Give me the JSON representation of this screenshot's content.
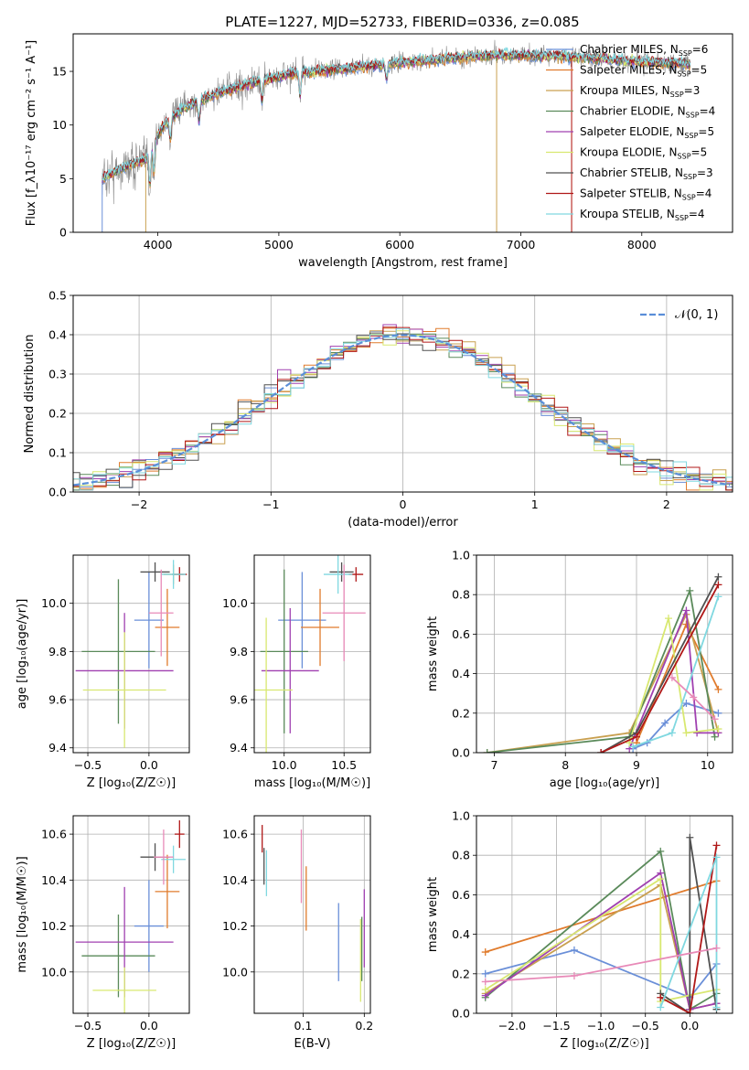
{
  "figure_title": "PLATE=1227, MJD=52733, FIBERID=0336, z=0.085",
  "colors": {
    "Chabrier MILES": "#6a8fd8",
    "Salpeter MILES": "#e07b2c",
    "Kroupa MILES": "#c9a050",
    "Chabrier ELODIE": "#5a8a5a",
    "Salpeter ELODIE": "#a040b0",
    "Kroupa ELODIE": "#d8e870",
    "Chabrier STELIB": "#505050",
    "Salpeter STELIB": "#b01818",
    "Kroupa STELIB": "#80d8e0",
    "data": "#888888",
    "pink": "#e88ab8",
    "normal": "#5a8ed8"
  },
  "chart_data": [
    {
      "id": "spectrum",
      "type": "line",
      "xlabel": "wavelength [Angstrom, rest frame]",
      "ylabel": "Flux [f_λ10⁻¹⁷ erg cm⁻² s⁻¹ A⁻¹]",
      "xlim": [
        3300,
        8750
      ],
      "ylim": [
        0,
        18.5
      ],
      "xticks": [
        "4000",
        "5000",
        "6000",
        "7000",
        "8000"
      ],
      "yticks": [
        "0",
        "5",
        "10",
        "15"
      ],
      "continuum_knots": [
        [
          3500,
          4.8
        ],
        [
          3700,
          6.0
        ],
        [
          3900,
          6.8
        ],
        [
          3950,
          8.0
        ],
        [
          4050,
          10.0
        ],
        [
          4200,
          11.5
        ],
        [
          4500,
          13.0
        ],
        [
          4800,
          14.0
        ],
        [
          5100,
          14.8
        ],
        [
          5500,
          15.2
        ],
        [
          6000,
          15.8
        ],
        [
          6500,
          16.3
        ],
        [
          6800,
          16.5
        ],
        [
          7200,
          16.5
        ],
        [
          7600,
          16.2
        ],
        [
          8000,
          15.9
        ],
        [
          8400,
          15.7
        ]
      ],
      "legend": [
        {
          "label": "Chabrier MILES, N",
          "n": "6"
        },
        {
          "label": "Salpeter MILES, N",
          "n": "5"
        },
        {
          "label": "Kroupa MILES, N",
          "n": "3"
        },
        {
          "label": "Chabrier ELODIE, N",
          "n": "4"
        },
        {
          "label": "Salpeter ELODIE, N",
          "n": "5"
        },
        {
          "label": "Kroupa ELODIE, N",
          "n": "5"
        },
        {
          "label": "Chabrier STELIB, N",
          "n": "3"
        },
        {
          "label": "Salpeter STELIB, N",
          "n": "4"
        },
        {
          "label": "Kroupa STELIB, N",
          "n": "4"
        }
      ],
      "legend_subscript": "SSP",
      "legend_placement": "right"
    },
    {
      "id": "residuals",
      "type": "histogram",
      "xlabel": "(data-model)/error",
      "ylabel": "Normed distribution",
      "xlim": [
        -2.5,
        2.5
      ],
      "ylim": [
        0,
        0.5
      ],
      "xticks": [
        "−2",
        "−1",
        "0",
        "1",
        "2"
      ],
      "yticks": [
        "0.0",
        "0.1",
        "0.2",
        "0.3",
        "0.4",
        "0.5"
      ],
      "bin_width": 0.1,
      "legend": "𝒩(0, 1)",
      "legend_placement": "top-right",
      "grid": true
    },
    {
      "id": "age_vs_Z",
      "type": "errorbar",
      "xlabel": "Z [log₁₀(Z/Z☉)]",
      "ylabel": "age  [log₁₀(age/yr)]",
      "xlim": [
        -0.62,
        0.33
      ],
      "ylim": [
        9.38,
        10.2
      ],
      "xticks": [
        "−0.5",
        "0.0"
      ],
      "yticks": [
        "9.4",
        "9.6",
        "9.8",
        "10.0"
      ],
      "points": [
        {
          "model": "Chabrier MILES",
          "x": 0.0,
          "xerr": 0.12,
          "y": 9.93,
          "yerr": 0.2
        },
        {
          "model": "Salpeter MILES",
          "x": 0.15,
          "xerr": 0.1,
          "y": 9.9,
          "yerr": 0.16
        },
        {
          "model": "Kroupa MILES",
          "x": 0.2,
          "xerr": 0.08,
          "y": 10.12,
          "yerr": 0.04
        },
        {
          "model": "Chabrier ELODIE",
          "x": -0.25,
          "xerr": 0.3,
          "y": 9.8,
          "yerr": 0.3
        },
        {
          "model": "Salpeter ELODIE",
          "x": -0.2,
          "xerr": 0.4,
          "y": 9.72,
          "yerr": 0.24
        },
        {
          "model": "Kroupa ELODIE",
          "x": -0.2,
          "xerr": 0.34,
          "y": 9.64,
          "yerr": 0.24
        },
        {
          "model": "Chabrier STELIB",
          "x": 0.05,
          "xerr": 0.12,
          "y": 10.13,
          "yerr": 0.04
        },
        {
          "model": "Salpeter STELIB",
          "x": 0.25,
          "xerr": 0.06,
          "y": 10.12,
          "yerr": 0.03
        },
        {
          "model": "Kroupa STELIB",
          "x": 0.2,
          "xerr": 0.1,
          "y": 10.12,
          "yerr": 0.06
        },
        {
          "model": "pink",
          "x": 0.1,
          "xerr": 0.1,
          "y": 9.96,
          "yerr": 0.18
        }
      ],
      "grid": true
    },
    {
      "id": "age_vs_mass",
      "type": "errorbar",
      "xlabel": "mass [log₁₀(M/M☉)]",
      "ylabel": "",
      "xlim": [
        9.75,
        10.72
      ],
      "ylim": [
        9.38,
        10.2
      ],
      "xticks": [
        "9.5",
        "10.0",
        "10.5"
      ],
      "xtick_values": [
        9.5,
        10.0,
        10.5
      ],
      "yticks": [
        "9.4",
        "9.6",
        "9.8",
        "10.0"
      ],
      "points": [
        {
          "model": "Chabrier MILES",
          "x": 10.15,
          "xerr": 0.2,
          "y": 9.93,
          "yerr": 0.2
        },
        {
          "model": "Salpeter MILES",
          "x": 10.3,
          "xerr": 0.16,
          "y": 9.9,
          "yerr": 0.16
        },
        {
          "model": "Chabrier ELODIE",
          "x": 10.0,
          "xerr": 0.2,
          "y": 9.8,
          "yerr": 0.34
        },
        {
          "model": "Salpeter ELODIE",
          "x": 10.05,
          "xerr": 0.24,
          "y": 9.72,
          "yerr": 0.26
        },
        {
          "model": "Kroupa ELODIE",
          "x": 9.85,
          "xerr": 0.22,
          "y": 9.64,
          "yerr": 0.3
        },
        {
          "model": "Chabrier STELIB",
          "x": 10.48,
          "xerr": 0.1,
          "y": 10.13,
          "yerr": 0.04
        },
        {
          "model": "Salpeter STELIB",
          "x": 10.6,
          "xerr": 0.06,
          "y": 10.12,
          "yerr": 0.03
        },
        {
          "model": "Kroupa STELIB",
          "x": 10.45,
          "xerr": 0.12,
          "y": 10.12,
          "yerr": 0.08
        },
        {
          "model": "pink",
          "x": 10.5,
          "xerr": 0.18,
          "y": 9.96,
          "yerr": 0.2
        }
      ],
      "grid": true
    },
    {
      "id": "massweight_vs_age",
      "type": "line",
      "xlabel": "age  [log₁₀(age/yr)]",
      "ylabel": "mass weight",
      "xlim": [
        6.75,
        10.35
      ],
      "ylim": [
        0,
        1
      ],
      "xticks": [
        "7",
        "8",
        "9",
        "10"
      ],
      "yticks": [
        "0.0",
        "0.2",
        "0.4",
        "0.6",
        "0.8",
        "1.0"
      ],
      "series": [
        {
          "model": "Chabrier MILES",
          "x": [
            8.95,
            9.15,
            9.4,
            9.7,
            10.15
          ],
          "y": [
            0.02,
            0.05,
            0.15,
            0.25,
            0.2
          ]
        },
        {
          "model": "Salpeter MILES",
          "x": [
            9.0,
            9.7,
            10.15
          ],
          "y": [
            0.05,
            0.65,
            0.32
          ]
        },
        {
          "model": "Kroupa MILES",
          "x": [
            6.9,
            8.9,
            9.7,
            10.15
          ],
          "y": [
            0.0,
            0.1,
            0.7,
            0.1
          ]
        },
        {
          "model": "Chabrier ELODIE",
          "x": [
            6.9,
            8.9,
            9.75,
            10.1
          ],
          "y": [
            0.0,
            0.08,
            0.82,
            0.08
          ]
        },
        {
          "model": "Salpeter ELODIE",
          "x": [
            8.9,
            9.7,
            9.85,
            10.15
          ],
          "y": [
            0.02,
            0.72,
            0.1,
            0.1
          ]
        },
        {
          "model": "Kroupa ELODIE",
          "x": [
            8.9,
            9.45,
            9.7,
            10.15
          ],
          "y": [
            0.05,
            0.68,
            0.1,
            0.12
          ]
        },
        {
          "model": "Chabrier STELIB",
          "x": [
            8.5,
            9.0,
            10.15
          ],
          "y": [
            0.0,
            0.1,
            0.89
          ]
        },
        {
          "model": "Salpeter STELIB",
          "x": [
            8.5,
            9.0,
            10.15
          ],
          "y": [
            0.0,
            0.08,
            0.85
          ]
        },
        {
          "model": "Kroupa STELIB",
          "x": [
            8.95,
            9.5,
            10.15
          ],
          "y": [
            0.03,
            0.1,
            0.79
          ]
        },
        {
          "model": "pink",
          "x": [
            9.5,
            9.8,
            10.1
          ],
          "y": [
            0.38,
            0.28,
            0.17
          ]
        }
      ],
      "grid": true
    },
    {
      "id": "mass_vs_Z",
      "type": "errorbar",
      "xlabel": "Z [log₁₀(Z/Z☉)]",
      "ylabel": "mass [log₁₀(M/M☉)]",
      "xlim": [
        -0.62,
        0.33
      ],
      "ylim": [
        9.82,
        10.68
      ],
      "xticks": [
        "−0.5",
        "0.0"
      ],
      "yticks": [
        "10.0",
        "10.2",
        "10.4",
        "10.6"
      ],
      "points": [
        {
          "model": "Chabrier MILES",
          "x": 0.0,
          "xerr": 0.12,
          "y": 10.2,
          "yerr": 0.2
        },
        {
          "model": "Salpeter MILES",
          "x": 0.15,
          "xerr": 0.1,
          "y": 10.35,
          "yerr": 0.16
        },
        {
          "model": "Chabrier ELODIE",
          "x": -0.25,
          "xerr": 0.3,
          "y": 10.07,
          "yerr": 0.18
        },
        {
          "model": "Salpeter ELODIE",
          "x": -0.2,
          "xerr": 0.4,
          "y": 10.13,
          "yerr": 0.24
        },
        {
          "model": "Kroupa ELODIE",
          "x": -0.2,
          "xerr": 0.26,
          "y": 9.92,
          "yerr": 0.1
        },
        {
          "model": "Chabrier STELIB",
          "x": 0.05,
          "xerr": 0.12,
          "y": 10.5,
          "yerr": 0.06
        },
        {
          "model": "Salpeter STELIB",
          "x": 0.25,
          "xerr": 0.04,
          "y": 10.6,
          "yerr": 0.06
        },
        {
          "model": "Kroupa STELIB",
          "x": 0.2,
          "xerr": 0.1,
          "y": 10.49,
          "yerr": 0.06
        },
        {
          "model": "pink",
          "x": 0.12,
          "xerr": 0.08,
          "y": 10.5,
          "yerr": 0.12
        }
      ],
      "grid": true
    },
    {
      "id": "mass_vs_EBV",
      "type": "errorbar",
      "xlabel": "E(B-V)",
      "ylabel": "",
      "xlim": [
        0.02,
        0.21
      ],
      "ylim": [
        9.82,
        10.68
      ],
      "xticks": [
        "0.1",
        "0.2"
      ],
      "yticks": [
        "10.0",
        "10.2",
        "10.4",
        "10.6"
      ],
      "points": [
        {
          "model": "Salpeter STELIB",
          "x": 0.033,
          "y": 10.58,
          "yerr": 0.06
        },
        {
          "model": "Chabrier STELIB",
          "x": 0.036,
          "y": 10.46,
          "yerr": 0.08
        },
        {
          "model": "Kroupa STELIB",
          "x": 0.04,
          "y": 10.43,
          "yerr": 0.1
        },
        {
          "model": "pink",
          "x": 0.097,
          "y": 10.46,
          "yerr": 0.16
        },
        {
          "model": "Salpeter MILES",
          "x": 0.105,
          "y": 10.32,
          "yerr": 0.14
        },
        {
          "model": "Chabrier MILES",
          "x": 0.158,
          "y": 10.13,
          "yerr": 0.17
        },
        {
          "model": "Kroupa ELODIE",
          "x": 0.194,
          "y": 10.05,
          "yerr": 0.18
        },
        {
          "model": "Chabrier ELODIE",
          "x": 0.196,
          "y": 10.1,
          "yerr": 0.14
        },
        {
          "model": "Salpeter ELODIE",
          "x": 0.2,
          "y": 10.19,
          "yerr": 0.17
        }
      ],
      "grid": true
    },
    {
      "id": "massweight_vs_Z",
      "type": "line",
      "xlabel": "Z [log₁₀(Z/Z☉)]",
      "ylabel": "mass weight",
      "xlim": [
        -2.4,
        0.48
      ],
      "ylim": [
        0,
        1
      ],
      "xticks": [
        "−2.0",
        "−1.5",
        "−1.0",
        "−0.5",
        "0.0"
      ],
      "yticks": [
        "0.0",
        "0.2",
        "0.4",
        "0.6",
        "0.8",
        "1.0"
      ],
      "series": [
        {
          "model": "Chabrier MILES",
          "x": [
            -2.3,
            -1.3,
            0.0,
            0.3
          ],
          "y": [
            0.2,
            0.32,
            0.08,
            0.25
          ]
        },
        {
          "model": "Salpeter MILES",
          "x": [
            -2.3,
            0.3
          ],
          "y": [
            0.31,
            0.67
          ]
        },
        {
          "model": "Kroupa MILES",
          "x": [
            -2.3,
            -0.33,
            0.0,
            0.3
          ],
          "y": [
            0.1,
            0.65,
            0.02,
            0.05
          ]
        },
        {
          "model": "Chabrier ELODIE",
          "x": [
            -2.3,
            -0.33,
            0.0,
            0.3
          ],
          "y": [
            0.08,
            0.82,
            0.02,
            0.1
          ]
        },
        {
          "model": "Salpeter ELODIE",
          "x": [
            -2.3,
            -0.33,
            0.0,
            0.3
          ],
          "y": [
            0.09,
            0.71,
            0.02,
            0.05
          ]
        },
        {
          "model": "Kroupa ELODIE",
          "x": [
            -2.3,
            -0.33,
            -0.33,
            0.3
          ],
          "y": [
            0.12,
            0.68,
            0.06,
            0.12
          ]
        },
        {
          "model": "Chabrier STELIB",
          "x": [
            -0.33,
            0.0,
            0.0,
            0.3
          ],
          "y": [
            0.1,
            0.0,
            0.89,
            0.02
          ]
        },
        {
          "model": "Salpeter STELIB",
          "x": [
            -0.33,
            0.0,
            0.3
          ],
          "y": [
            0.08,
            0.0,
            0.85
          ]
        },
        {
          "model": "Kroupa STELIB",
          "x": [
            -0.33,
            0.3,
            0.3
          ],
          "y": [
            0.03,
            0.79,
            0.03
          ]
        },
        {
          "model": "pink",
          "x": [
            -2.3,
            -1.3,
            0.3
          ],
          "y": [
            0.16,
            0.19,
            0.33
          ]
        }
      ],
      "grid": true
    }
  ]
}
